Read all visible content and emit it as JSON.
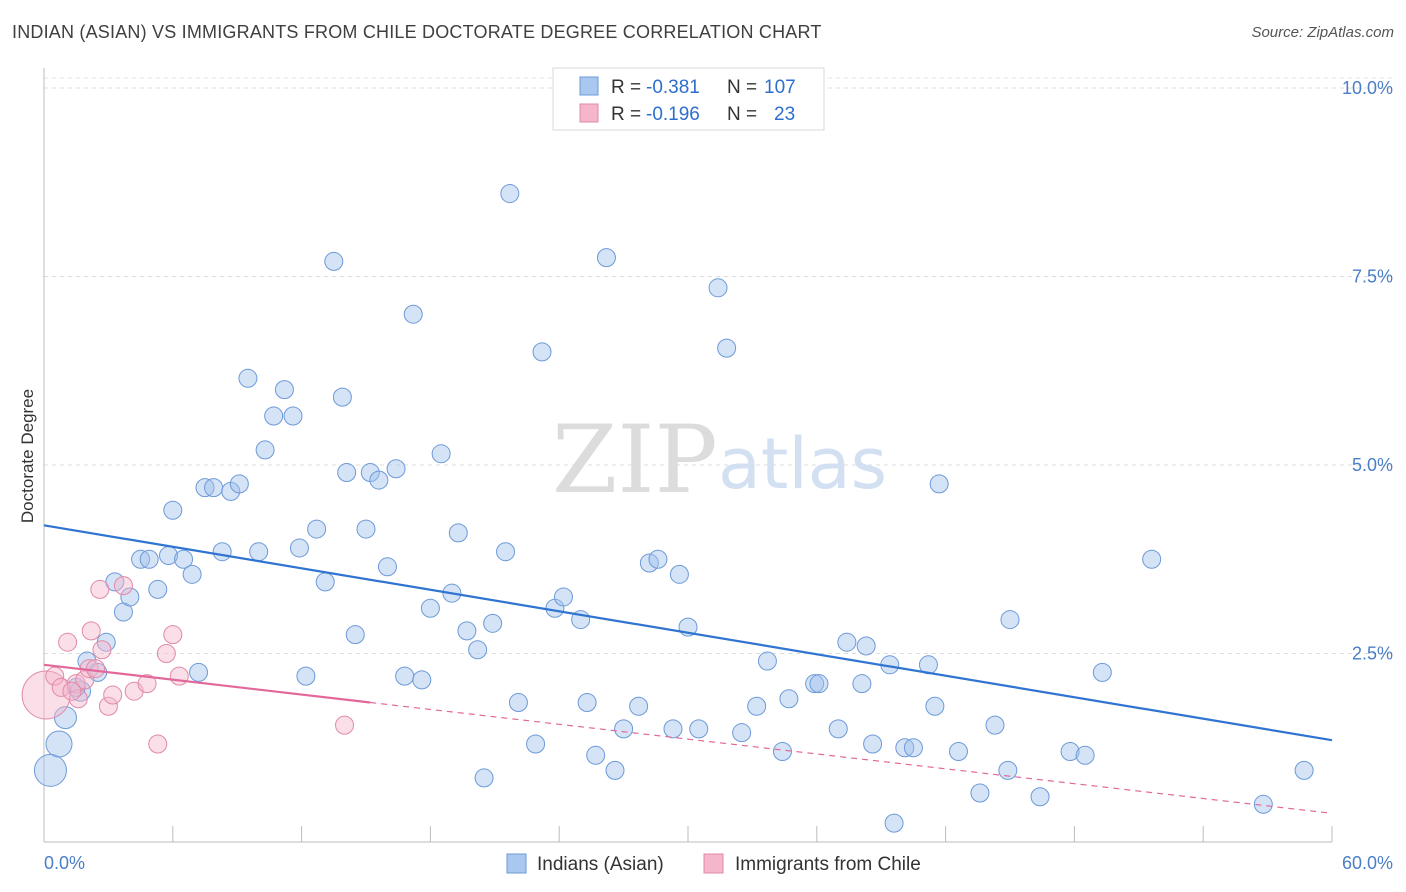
{
  "title": "INDIAN (ASIAN) VS IMMIGRANTS FROM CHILE DOCTORATE DEGREE CORRELATION CHART",
  "source": "Source: ZipAtlas.com",
  "watermark": {
    "zip": "ZIP",
    "atlas": "atlas"
  },
  "colors": {
    "blue": "#2f74d0",
    "blue_fill": "#aac8ef",
    "pink": "#e2679a",
    "pink_fill": "#f5b6cb",
    "grid": "#dddddd",
    "tick_label": "#4a7ec6"
  },
  "legend": {
    "rows": [
      {
        "r_label": "R = ",
        "r_value": "-0.381",
        "n_label": "N = ",
        "n_value": "107"
      },
      {
        "r_label": "R = ",
        "r_value": "-0.196",
        "n_label": "N = ",
        "n_value": "23"
      }
    ]
  },
  "chart_data": {
    "type": "scatter",
    "title": "INDIAN (ASIAN) VS IMMIGRANTS FROM CHILE DOCTORATE DEGREE CORRELATION CHART",
    "xlabel": "",
    "ylabel": "Doctorate Degree",
    "xlim": [
      0,
      60
    ],
    "ylim": [
      0,
      10
    ],
    "x_tick_labels": [
      "0.0%",
      "60.0%"
    ],
    "y_ticks": [
      2.5,
      5.0,
      7.5,
      10.0
    ],
    "y_tick_labels": [
      "2.5%",
      "5.0%",
      "7.5%",
      "10.0%"
    ],
    "grid": true,
    "legend_placement": "top-center",
    "series": [
      {
        "name": "Indians (Asian)",
        "color": "#2f74d0",
        "trend": {
          "x": [
            0,
            60
          ],
          "y": [
            4.2,
            1.35
          ]
        },
        "points": [
          [
            0.3,
            0.95,
            16
          ],
          [
            0.7,
            1.3,
            13
          ],
          [
            1.0,
            1.65,
            11
          ],
          [
            1.7,
            2.0,
            10
          ],
          [
            1.5,
            2.05,
            9
          ],
          [
            2.0,
            2.4,
            9
          ],
          [
            2.5,
            2.25,
            9
          ],
          [
            2.9,
            2.65,
            9
          ],
          [
            3.3,
            3.45,
            9
          ],
          [
            3.7,
            3.05,
            9
          ],
          [
            4.0,
            3.25,
            9
          ],
          [
            4.5,
            3.75,
            9
          ],
          [
            4.9,
            3.75,
            9
          ],
          [
            5.3,
            3.35,
            9
          ],
          [
            5.8,
            3.8,
            9
          ],
          [
            6.0,
            4.4,
            9
          ],
          [
            6.5,
            3.75,
            9
          ],
          [
            6.9,
            3.55,
            9
          ],
          [
            7.2,
            2.25,
            9
          ],
          [
            7.5,
            4.7,
            9
          ],
          [
            7.9,
            4.7,
            9
          ],
          [
            8.3,
            3.85,
            9
          ],
          [
            8.7,
            4.65,
            9
          ],
          [
            9.1,
            4.75,
            9
          ],
          [
            9.5,
            6.15,
            9
          ],
          [
            10.0,
            3.85,
            9
          ],
          [
            10.3,
            5.2,
            9
          ],
          [
            10.7,
            5.65,
            9
          ],
          [
            11.2,
            6.0,
            9
          ],
          [
            11.6,
            5.65,
            9
          ],
          [
            11.9,
            3.9,
            9
          ],
          [
            12.2,
            2.2,
            9
          ],
          [
            12.7,
            4.15,
            9
          ],
          [
            13.1,
            3.45,
            9
          ],
          [
            13.5,
            7.7,
            9
          ],
          [
            13.9,
            5.9,
            9
          ],
          [
            14.1,
            4.9,
            9
          ],
          [
            14.5,
            2.75,
            9
          ],
          [
            15.0,
            4.15,
            9
          ],
          [
            15.2,
            4.9,
            9
          ],
          [
            15.6,
            4.8,
            9
          ],
          [
            16.0,
            3.65,
            9
          ],
          [
            16.4,
            4.95,
            9
          ],
          [
            16.8,
            2.2,
            9
          ],
          [
            17.2,
            7.0,
            9
          ],
          [
            17.6,
            2.15,
            9
          ],
          [
            18.0,
            3.1,
            9
          ],
          [
            18.5,
            5.15,
            9
          ],
          [
            19.0,
            3.3,
            9
          ],
          [
            19.3,
            4.1,
            9
          ],
          [
            19.7,
            2.8,
            9
          ],
          [
            20.2,
            2.55,
            9
          ],
          [
            20.5,
            0.85,
            9
          ],
          [
            20.9,
            2.9,
            9
          ],
          [
            21.5,
            3.85,
            9
          ],
          [
            21.7,
            8.6,
            9
          ],
          [
            22.1,
            1.85,
            9
          ],
          [
            22.9,
            1.3,
            9
          ],
          [
            23.2,
            6.5,
            9
          ],
          [
            23.8,
            3.1,
            9
          ],
          [
            24.2,
            3.25,
            9
          ],
          [
            25.0,
            2.95,
            9
          ],
          [
            25.3,
            1.85,
            9
          ],
          [
            25.7,
            1.15,
            9
          ],
          [
            26.2,
            7.75,
            9
          ],
          [
            26.6,
            0.95,
            9
          ],
          [
            27.0,
            1.5,
            9
          ],
          [
            27.7,
            1.8,
            9
          ],
          [
            28.2,
            3.7,
            9
          ],
          [
            28.6,
            3.75,
            9
          ],
          [
            29.3,
            1.5,
            9
          ],
          [
            29.6,
            3.55,
            9
          ],
          [
            30.0,
            2.85,
            9
          ],
          [
            30.5,
            1.5,
            9
          ],
          [
            31.4,
            7.35,
            9
          ],
          [
            31.8,
            6.55,
            9
          ],
          [
            32.5,
            1.45,
            9
          ],
          [
            33.2,
            1.8,
            9
          ],
          [
            33.7,
            2.4,
            9
          ],
          [
            34.4,
            1.2,
            9
          ],
          [
            34.7,
            1.9,
            9
          ],
          [
            35.9,
            2.1,
            9
          ],
          [
            36.1,
            2.1,
            9
          ],
          [
            37.0,
            1.5,
            9
          ],
          [
            37.4,
            2.65,
            9
          ],
          [
            38.1,
            2.1,
            9
          ],
          [
            38.3,
            2.6,
            9
          ],
          [
            38.6,
            1.3,
            9
          ],
          [
            39.4,
            2.35,
            9
          ],
          [
            39.6,
            0.25,
            9
          ],
          [
            40.1,
            1.25,
            9
          ],
          [
            40.5,
            1.25,
            9
          ],
          [
            41.2,
            2.35,
            9
          ],
          [
            41.5,
            1.8,
            9
          ],
          [
            41.7,
            4.75,
            9
          ],
          [
            42.6,
            1.2,
            9
          ],
          [
            43.6,
            0.65,
            9
          ],
          [
            44.3,
            1.55,
            9
          ],
          [
            44.9,
            0.95,
            9
          ],
          [
            45.0,
            2.95,
            9
          ],
          [
            46.4,
            0.6,
            9
          ],
          [
            47.8,
            1.2,
            9
          ],
          [
            48.5,
            1.15,
            9
          ],
          [
            49.3,
            2.25,
            9
          ],
          [
            51.6,
            3.75,
            9
          ],
          [
            56.8,
            0.5,
            9
          ],
          [
            58.7,
            0.95,
            9
          ]
        ]
      },
      {
        "name": "Immigrants from Chile",
        "color": "#e2679a",
        "trend": {
          "x": [
            0,
            15.2
          ],
          "y": [
            2.35,
            1.85
          ]
        },
        "trend_ext": {
          "x": [
            15.2,
            60
          ],
          "y": [
            1.85,
            0.38
          ]
        },
        "points": [
          [
            0.1,
            1.95,
            24
          ],
          [
            0.5,
            2.2,
            9
          ],
          [
            0.8,
            2.05,
            9
          ],
          [
            1.1,
            2.65,
            9
          ],
          [
            1.5,
            2.1,
            9
          ],
          [
            1.6,
            1.9,
            9
          ],
          [
            1.9,
            2.15,
            9
          ],
          [
            2.1,
            2.3,
            9
          ],
          [
            2.2,
            2.8,
            9
          ],
          [
            2.4,
            2.3,
            9
          ],
          [
            2.6,
            3.35,
            9
          ],
          [
            2.7,
            2.55,
            9
          ],
          [
            3.0,
            1.8,
            9
          ],
          [
            3.2,
            1.95,
            9
          ],
          [
            3.7,
            3.4,
            9
          ],
          [
            4.2,
            2.0,
            9
          ],
          [
            4.8,
            2.1,
            9
          ],
          [
            5.3,
            1.3,
            9
          ],
          [
            5.7,
            2.5,
            9
          ],
          [
            6.0,
            2.75,
            9
          ],
          [
            6.3,
            2.2,
            9
          ],
          [
            14.0,
            1.55,
            9
          ],
          [
            1.3,
            2.0,
            9
          ]
        ]
      }
    ]
  },
  "bottom_legend": {
    "items": [
      {
        "label": "Indians (Asian)"
      },
      {
        "label": "Immigrants from Chile"
      }
    ]
  }
}
